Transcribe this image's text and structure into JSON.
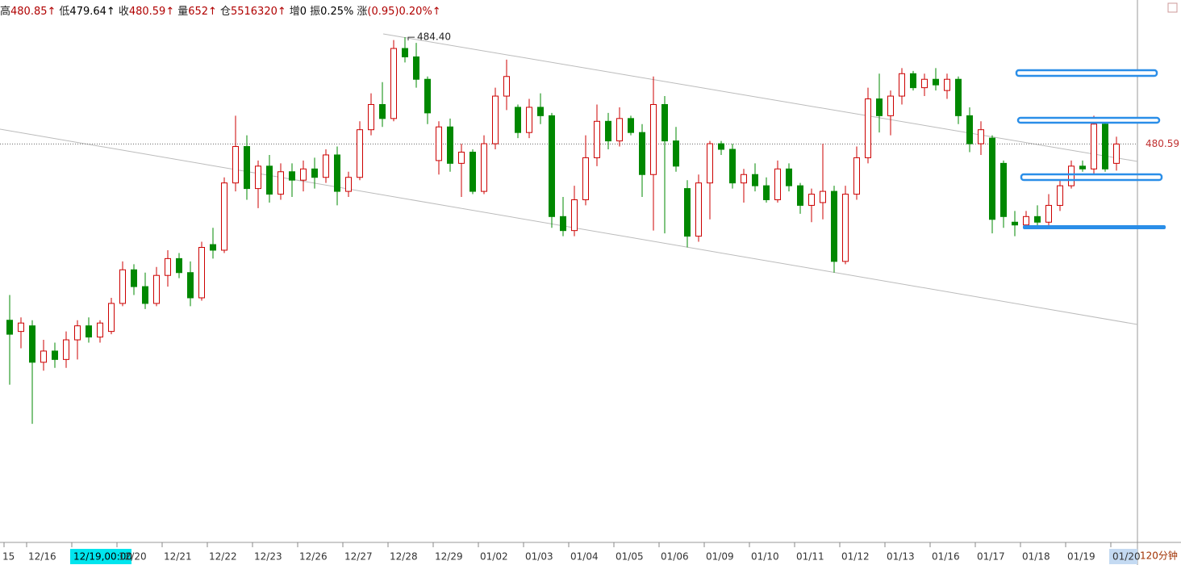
{
  "chart_data": {
    "type": "candlestick",
    "header": [
      {
        "label": "高",
        "value": "480.85↑",
        "color": "#b00000"
      },
      {
        "label": "低",
        "value": "479.64↑",
        "color": "#000000"
      },
      {
        "label": "收",
        "value": "480.59↑",
        "color": "#b00000"
      },
      {
        "label": "量",
        "value": "652↑",
        "color": "#b00000"
      },
      {
        "label": "仓",
        "value": "5516320↑",
        "color": "#b00000"
      },
      {
        "label": "增",
        "value": "0",
        "color": "#000000"
      },
      {
        "label": "振",
        "value": "0.25%",
        "color": "#000000"
      },
      {
        "label": "涨",
        "value": "(0.95)0.20%↑",
        "color": "#b00000"
      }
    ],
    "period": "120分钟",
    "max_label": "484.40",
    "last_label": "480.59",
    "up_color": "#cc0000",
    "down_color": "#008800",
    "ylim": [
      466.37,
      485.73
    ],
    "categories": [
      "15",
      null,
      "12/16",
      null,
      null,
      null,
      "12/19,00:00",
      null,
      null,
      null,
      "12/20",
      null,
      null,
      null,
      "12/21",
      null,
      null,
      null,
      "12/22",
      null,
      null,
      null,
      "12/23",
      null,
      null,
      null,
      "12/26",
      null,
      null,
      null,
      "12/27",
      null,
      null,
      null,
      "12/28",
      null,
      null,
      null,
      "12/29",
      null,
      null,
      null,
      "01/02",
      null,
      null,
      null,
      "01/03",
      null,
      null,
      null,
      "01/04",
      null,
      null,
      null,
      "01/05",
      null,
      null,
      null,
      "01/06",
      null,
      null,
      null,
      "01/09",
      null,
      null,
      null,
      "01/10",
      null,
      null,
      null,
      "01/11",
      null,
      null,
      null,
      "01/12",
      null,
      null,
      null,
      "01/13",
      null,
      null,
      null,
      "01/16",
      null,
      null,
      null,
      "01/17",
      null,
      null,
      null,
      "01/18",
      null,
      null,
      null,
      "01/19",
      null,
      null,
      null,
      "01/20"
    ],
    "ohlc": [
      [
        474.3,
        475.2,
        472.0,
        473.8
      ],
      [
        473.9,
        474.4,
        473.3,
        474.2
      ],
      [
        474.1,
        474.3,
        470.6,
        472.8
      ],
      [
        472.8,
        473.6,
        472.5,
        473.2
      ],
      [
        473.2,
        473.5,
        472.6,
        472.9
      ],
      [
        472.9,
        473.9,
        472.6,
        473.6
      ],
      [
        473.6,
        474.3,
        472.9,
        474.1
      ],
      [
        474.1,
        474.4,
        473.5,
        473.7
      ],
      [
        473.7,
        474.3,
        473.5,
        474.2
      ],
      [
        473.9,
        475.1,
        473.8,
        474.9
      ],
      [
        474.9,
        476.4,
        474.8,
        476.1
      ],
      [
        476.1,
        476.3,
        475.2,
        475.5
      ],
      [
        475.5,
        476.0,
        474.7,
        474.9
      ],
      [
        474.9,
        476.2,
        474.8,
        475.9
      ],
      [
        475.9,
        476.8,
        475.5,
        476.5
      ],
      [
        476.5,
        476.7,
        475.8,
        476.0
      ],
      [
        476.0,
        476.4,
        474.8,
        475.1
      ],
      [
        475.1,
        477.1,
        475.0,
        476.9
      ],
      [
        477.0,
        477.6,
        476.5,
        476.8
      ],
      [
        476.8,
        479.4,
        476.7,
        479.2
      ],
      [
        479.2,
        481.6,
        478.9,
        480.5
      ],
      [
        480.5,
        480.9,
        478.6,
        479.0
      ],
      [
        479.0,
        480.0,
        478.3,
        479.8
      ],
      [
        479.8,
        480.2,
        478.5,
        478.8
      ],
      [
        478.8,
        479.9,
        478.6,
        479.6
      ],
      [
        479.6,
        479.9,
        478.7,
        479.3
      ],
      [
        479.3,
        480.0,
        478.9,
        479.7
      ],
      [
        479.7,
        480.1,
        479.0,
        479.4
      ],
      [
        479.4,
        480.4,
        479.2,
        480.2
      ],
      [
        480.2,
        480.5,
        478.4,
        478.9
      ],
      [
        478.9,
        479.6,
        478.7,
        479.4
      ],
      [
        479.4,
        481.4,
        479.3,
        481.1
      ],
      [
        481.1,
        482.4,
        480.9,
        482.0
      ],
      [
        482.0,
        482.8,
        481.2,
        481.5
      ],
      [
        481.5,
        484.3,
        481.4,
        484.0
      ],
      [
        484.0,
        484.4,
        483.5,
        483.7
      ],
      [
        483.7,
        484.2,
        482.6,
        482.9
      ],
      [
        482.9,
        483.0,
        481.3,
        481.7
      ],
      [
        480.0,
        481.4,
        479.5,
        481.2
      ],
      [
        481.2,
        481.5,
        479.6,
        479.9
      ],
      [
        479.9,
        480.6,
        478.7,
        480.3
      ],
      [
        480.3,
        480.4,
        478.8,
        478.9
      ],
      [
        478.9,
        480.9,
        478.8,
        480.6
      ],
      [
        480.6,
        482.6,
        480.4,
        482.3
      ],
      [
        482.3,
        483.6,
        481.8,
        483.0
      ],
      [
        481.9,
        482.0,
        480.8,
        481.0
      ],
      [
        481.0,
        482.2,
        480.8,
        481.9
      ],
      [
        481.9,
        482.4,
        481.3,
        481.6
      ],
      [
        481.6,
        481.7,
        477.6,
        478.0
      ],
      [
        478.0,
        478.7,
        477.3,
        477.5
      ],
      [
        477.5,
        479.1,
        477.3,
        478.6
      ],
      [
        478.6,
        480.9,
        478.4,
        480.1
      ],
      [
        480.1,
        482.0,
        479.8,
        481.4
      ],
      [
        481.4,
        481.7,
        480.4,
        480.7
      ],
      [
        480.7,
        481.9,
        480.5,
        481.5
      ],
      [
        481.5,
        481.6,
        480.9,
        481.0
      ],
      [
        481.0,
        481.3,
        478.7,
        479.5
      ],
      [
        479.5,
        483.0,
        477.5,
        482.0
      ],
      [
        482.0,
        482.3,
        477.4,
        480.7
      ],
      [
        480.7,
        481.2,
        479.6,
        479.8
      ],
      [
        479.0,
        479.3,
        476.9,
        477.3
      ],
      [
        477.3,
        479.5,
        477.1,
        479.2
      ],
      [
        479.2,
        480.7,
        477.9,
        480.6
      ],
      [
        480.6,
        480.7,
        480.2,
        480.4
      ],
      [
        480.4,
        480.6,
        479.0,
        479.2
      ],
      [
        479.2,
        479.7,
        478.5,
        479.5
      ],
      [
        479.5,
        479.9,
        478.9,
        479.1
      ],
      [
        479.1,
        479.4,
        478.5,
        478.6
      ],
      [
        478.6,
        480.0,
        478.5,
        479.7
      ],
      [
        479.7,
        479.9,
        478.9,
        479.1
      ],
      [
        479.1,
        479.2,
        478.1,
        478.4
      ],
      [
        478.4,
        479.0,
        477.8,
        478.8
      ],
      [
        478.5,
        480.6,
        477.9,
        478.9
      ],
      [
        478.9,
        479.1,
        476.0,
        476.4
      ],
      [
        476.4,
        479.1,
        476.3,
        478.8
      ],
      [
        478.8,
        480.5,
        478.6,
        480.1
      ],
      [
        480.1,
        482.6,
        479.9,
        482.2
      ],
      [
        482.2,
        483.1,
        481.0,
        481.6
      ],
      [
        481.6,
        482.5,
        480.9,
        482.3
      ],
      [
        482.3,
        483.3,
        482.0,
        483.1
      ],
      [
        483.1,
        483.2,
        482.5,
        482.6
      ],
      [
        482.6,
        483.1,
        482.3,
        482.9
      ],
      [
        482.9,
        483.3,
        482.5,
        482.7
      ],
      [
        482.5,
        483.1,
        482.2,
        482.9
      ],
      [
        482.9,
        483.0,
        481.3,
        481.6
      ],
      [
        481.6,
        481.9,
        480.3,
        480.6
      ],
      [
        480.6,
        481.4,
        480.2,
        481.1
      ],
      [
        480.8,
        480.9,
        477.4,
        477.9
      ],
      [
        479.9,
        480.0,
        477.6,
        478.0
      ],
      [
        477.8,
        478.2,
        477.3,
        477.7
      ],
      [
        477.7,
        478.2,
        477.6,
        478.0
      ],
      [
        478.0,
        478.4,
        477.6,
        477.8
      ],
      [
        477.8,
        478.8,
        477.6,
        478.4
      ],
      [
        478.4,
        479.3,
        478.2,
        479.1
      ],
      [
        479.1,
        480.0,
        479.0,
        479.8
      ],
      [
        479.8,
        480.0,
        479.6,
        479.7
      ],
      [
        479.7,
        481.6,
        479.5,
        481.3
      ],
      [
        481.3,
        481.5,
        479.6,
        479.7
      ],
      [
        479.9,
        480.85,
        479.64,
        480.59
      ]
    ]
  }
}
